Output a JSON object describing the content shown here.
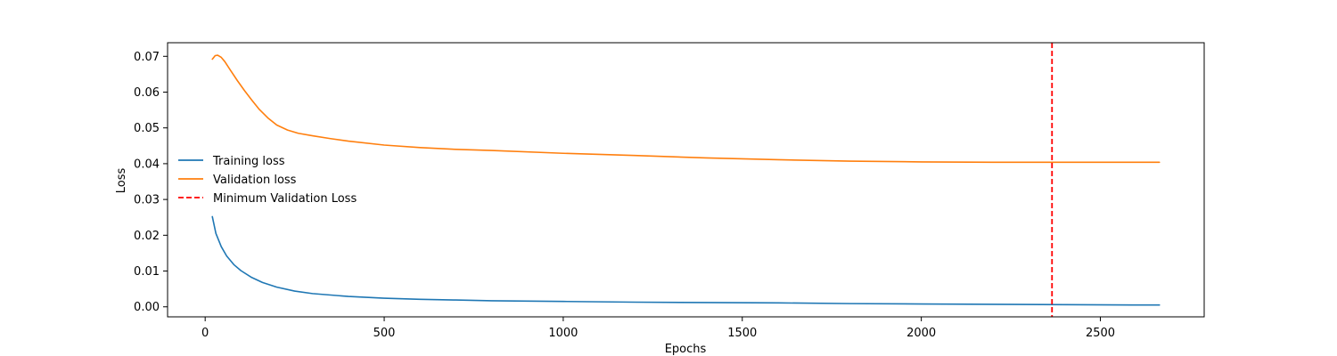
{
  "chart_data": {
    "type": "line",
    "title": "",
    "xlabel": "Epochs",
    "ylabel": "Loss",
    "xlim": [
      -105,
      2790
    ],
    "ylim": [
      -0.0028,
      0.0738
    ],
    "x_ticks": [
      0,
      500,
      1000,
      1500,
      2000,
      2500
    ],
    "y_ticks": [
      0.0,
      0.01,
      0.02,
      0.03,
      0.04,
      0.05,
      0.06,
      0.07
    ],
    "x_tick_labels": [
      "0",
      "500",
      "1000",
      "1500",
      "2000",
      "2500"
    ],
    "y_tick_labels": [
      "0.00",
      "0.01",
      "0.02",
      "0.03",
      "0.04",
      "0.05",
      "0.06",
      "0.07"
    ],
    "grid": false,
    "legend_location": "center-left",
    "series": [
      {
        "name": "Training loss",
        "color": "#1f77b4",
        "style": "solid",
        "x": [
          20,
          30,
          45,
          60,
          80,
          100,
          130,
          160,
          200,
          250,
          300,
          400,
          500,
          600,
          700,
          800,
          1000,
          1200,
          1400,
          1600,
          1800,
          2000,
          2200,
          2400,
          2600,
          2665
        ],
        "y": [
          0.0252,
          0.0205,
          0.0168,
          0.0142,
          0.0118,
          0.0101,
          0.0082,
          0.0068,
          0.0055,
          0.0044,
          0.0037,
          0.0029,
          0.0024,
          0.0021,
          0.0019,
          0.0017,
          0.0015,
          0.0013,
          0.0012,
          0.0011,
          0.0009,
          0.0008,
          0.0007,
          0.0006,
          0.0005,
          0.0005
        ]
      },
      {
        "name": "Validation loss",
        "color": "#ff7f0e",
        "style": "solid",
        "x": [
          20,
          28,
          35,
          45,
          55,
          70,
          90,
          110,
          130,
          150,
          175,
          200,
          230,
          260,
          300,
          350,
          400,
          500,
          600,
          700,
          800,
          1000,
          1200,
          1400,
          1600,
          1800,
          2000,
          2200,
          2400,
          2600,
          2665
        ],
        "y": [
          0.0692,
          0.0702,
          0.0703,
          0.0697,
          0.0685,
          0.0662,
          0.0632,
          0.0604,
          0.0578,
          0.0553,
          0.0528,
          0.0508,
          0.0494,
          0.0485,
          0.0478,
          0.047,
          0.0463,
          0.0452,
          0.0445,
          0.044,
          0.0437,
          0.0429,
          0.0423,
          0.0416,
          0.0411,
          0.0407,
          0.0405,
          0.0404,
          0.0404,
          0.0404,
          0.0404
        ]
      }
    ],
    "vertical_lines": [
      {
        "name": "Minimum Validation Loss",
        "x": 2365,
        "color": "#ff0000",
        "style": "dashed"
      }
    ]
  }
}
